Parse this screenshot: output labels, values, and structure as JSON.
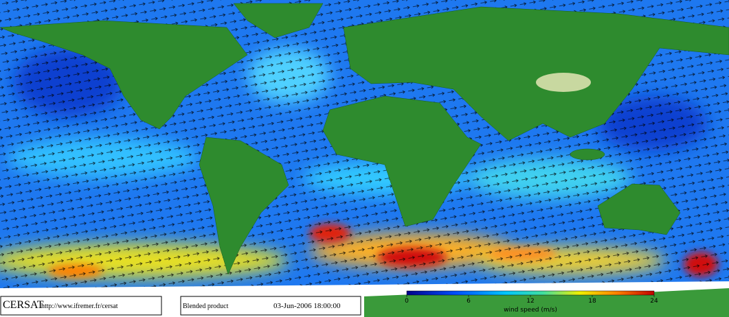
{
  "header": {
    "logo": "CERSAT",
    "url": "http://www.ifremer.fr/cersat"
  },
  "product": {
    "name": "Blended product",
    "date": "03-Jun-2006 18:00:00"
  },
  "colorbar": {
    "lim": [
      0,
      24
    ],
    "ticks": [
      0,
      6,
      12,
      18,
      24
    ],
    "label": "wind speed (m/s)"
  }
}
